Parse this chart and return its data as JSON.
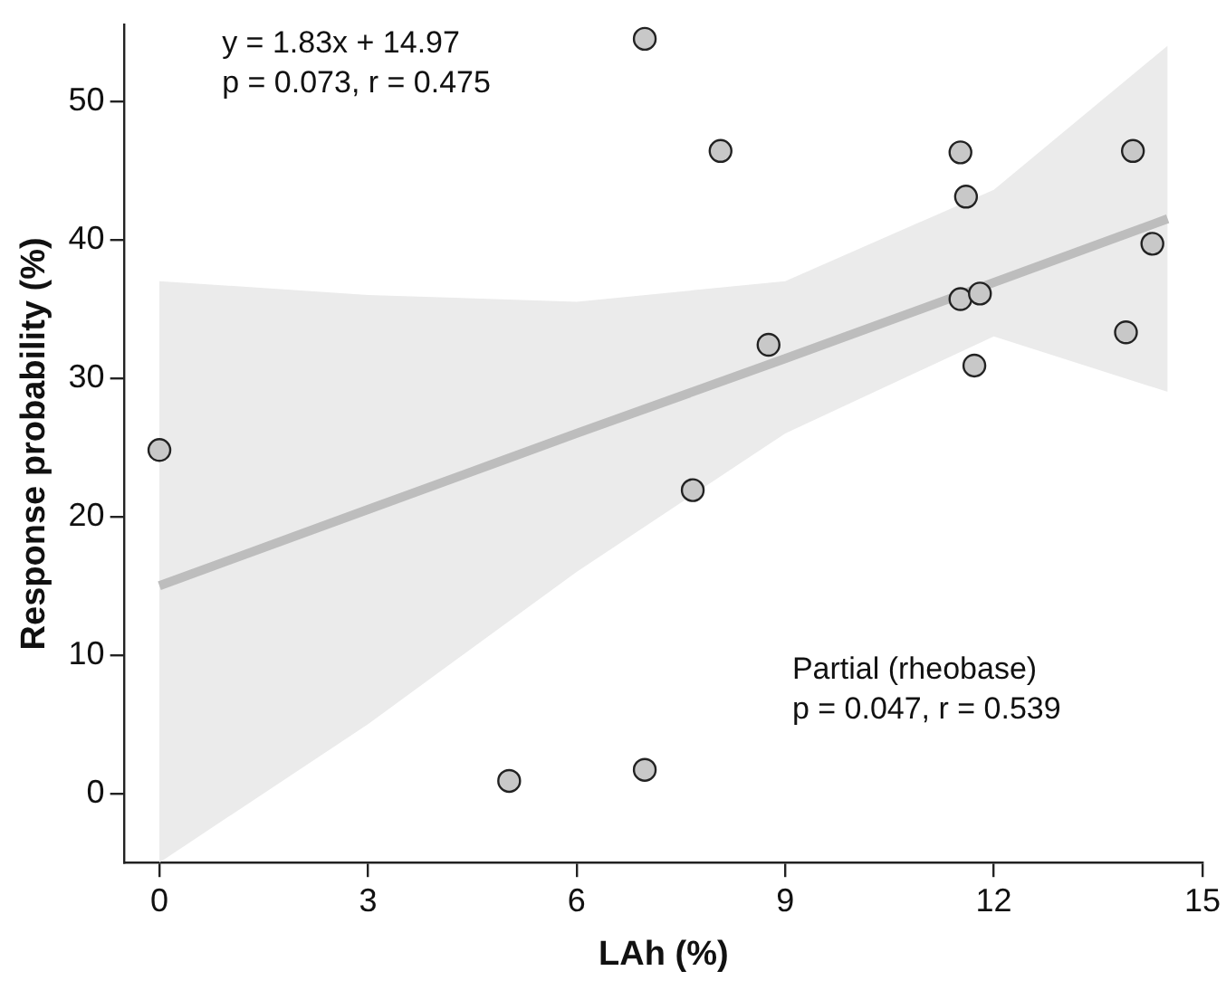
{
  "chart_data": {
    "type": "scatter",
    "xlabel": "LAh (%)",
    "ylabel": "Response probability (%)",
    "annotations": [
      "y = 1.83x + 14.97\np = 0.073, r = 0.475",
      "Partial (rheobase)\np = 0.047, r = 0.539"
    ],
    "xlim": [
      -0.5,
      15
    ],
    "xticks": [
      0,
      3,
      6,
      9,
      12,
      15
    ],
    "ylim": [
      -5,
      55.5
    ],
    "yticks": [
      0,
      10,
      20,
      30,
      40,
      50
    ],
    "grid": false,
    "legend": false,
    "marker": "circle",
    "series": [
      {
        "type": "line",
        "color": "#bdbdbd",
        "marker": "none",
        "x": [
          0,
          3,
          6,
          9,
          12,
          14.5
        ],
        "values": [
          15,
          20.5,
          26,
          31.4,
          36.9,
          41.5
        ],
        "lower": [
          -5,
          5,
          16,
          26,
          33,
          29
        ],
        "upper": [
          37,
          36,
          35.5,
          37,
          43.6,
          54
        ]
      },
      {
        "color": "#c8c8c8",
        "x": [
          0,
          5.03,
          6.98,
          6.98,
          7.67,
          8.07,
          8.76,
          11.52,
          11.6,
          11.52,
          11.8,
          11.72,
          13.9,
          14.0,
          14.28
        ],
        "values": [
          24.8,
          0.9,
          1.7,
          54.5,
          21.9,
          46.4,
          32.4,
          46.3,
          43.1,
          35.7,
          36.1,
          30.9,
          33.3,
          46.4,
          39.7
        ]
      }
    ]
  }
}
